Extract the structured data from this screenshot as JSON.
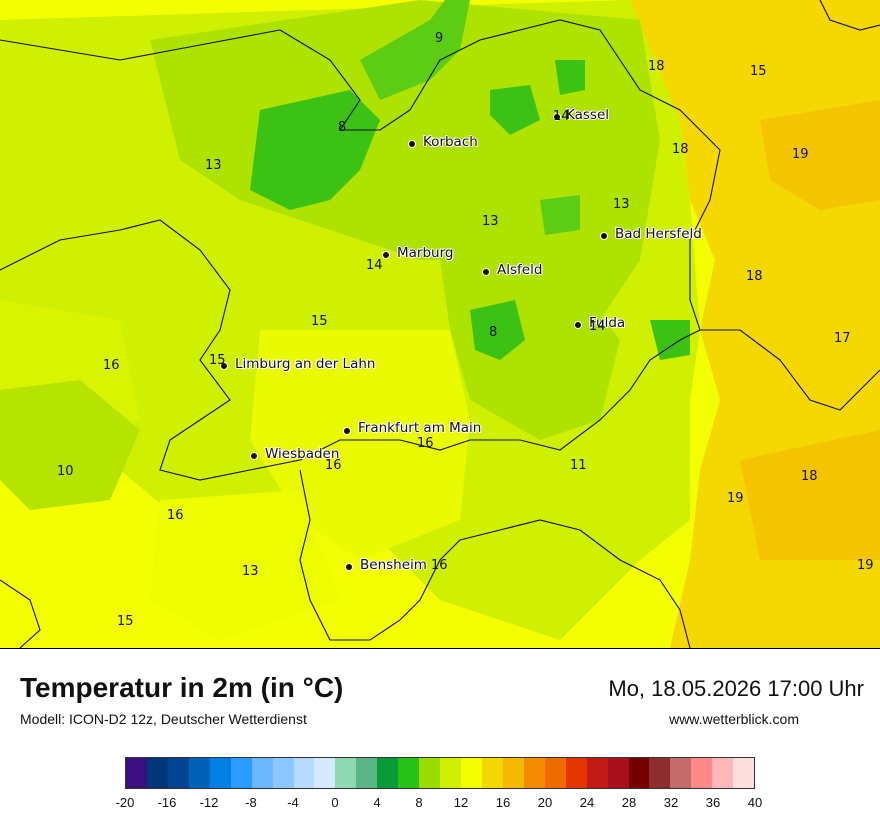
{
  "header": {
    "title": "Temperatur in 2m (in °C)",
    "model": "Modell: ICON-D2 12z, Deutscher Wetterdienst",
    "datetime": "Mo, 18.05.2026 17:00 Uhr",
    "website": "www.wetterblick.com"
  },
  "cities": [
    {
      "name": "Kassel",
      "id": "kassel"
    },
    {
      "name": "Korbach",
      "id": "korbach"
    },
    {
      "name": "Bad Hersfeld",
      "id": "bad-hersfeld"
    },
    {
      "name": "Marburg",
      "id": "marburg"
    },
    {
      "name": "Alsfeld",
      "id": "alsfeld"
    },
    {
      "name": "Fulda",
      "id": "fulda"
    },
    {
      "name": "Limburg an der Lahn",
      "id": "limburg"
    },
    {
      "name": "Frankfurt am Main",
      "id": "frankfurt"
    },
    {
      "name": "Wiesbaden",
      "id": "wiesbaden"
    },
    {
      "name": "Bensheim",
      "id": "bensheim"
    }
  ],
  "values": [
    "9",
    "18",
    "15",
    "14",
    "8",
    "18",
    "19",
    "13",
    "13",
    "13",
    "18",
    "14",
    "15",
    "8",
    "14",
    "17",
    "16",
    "15",
    "16",
    "16",
    "11",
    "10",
    "19",
    "18",
    "16",
    "13",
    "16",
    "19",
    "15"
  ],
  "legend": {
    "colors": [
      "#3b0f80",
      "#00367a",
      "#00458f",
      "#0061b9",
      "#0080e4",
      "#2b9cff",
      "#6cb8ff",
      "#8cc8ff",
      "#b7dbff",
      "#d6eaff",
      "#8dd9b4",
      "#5cb587",
      "#0a9a38",
      "#27c215",
      "#98dc00",
      "#cff000",
      "#f3ff00",
      "#f4d800",
      "#f4b900",
      "#f28b00",
      "#ef6a00",
      "#e43500",
      "#c21a17",
      "#a8101b",
      "#760000",
      "#8f2d2d",
      "#c36a6a",
      "#ff8888",
      "#ffb6b6",
      "#ffdede"
    ],
    "ticks": [
      "-20",
      "-16",
      "-12",
      "-8",
      "-4",
      "0",
      "4",
      "8",
      "12",
      "16",
      "20",
      "24",
      "28",
      "32",
      "36",
      "40"
    ]
  }
}
